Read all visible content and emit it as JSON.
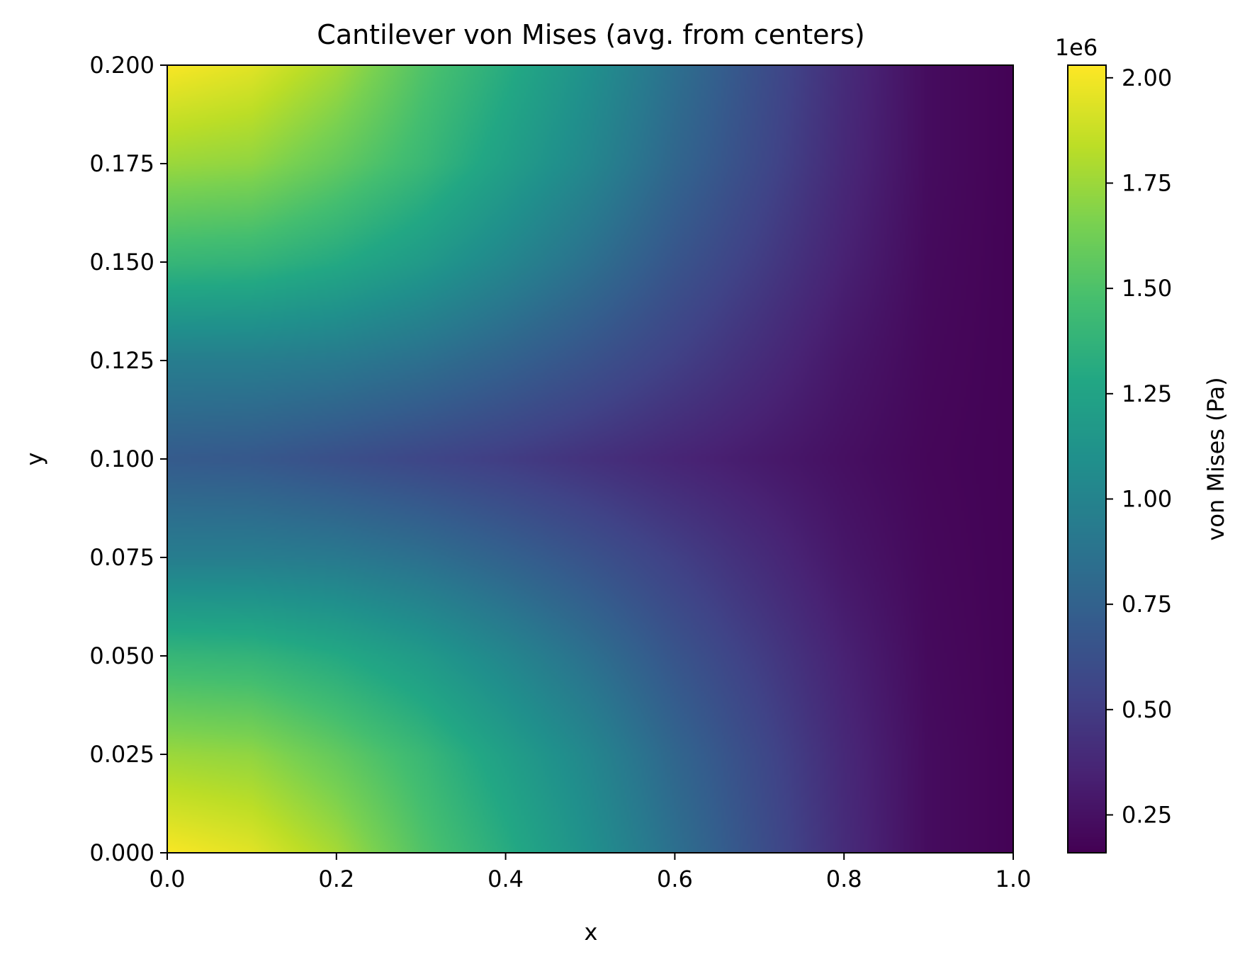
{
  "chart_data": {
    "type": "heatmap",
    "title": "Cantilever von Mises (avg. from centers)",
    "xlabel": "x",
    "ylabel": "y",
    "xlim": [
      0.0,
      1.0
    ],
    "ylim": [
      0.0,
      0.2
    ],
    "x_ticks": [
      "0.0",
      "0.2",
      "0.4",
      "0.6",
      "0.8",
      "1.0"
    ],
    "y_ticks": [
      "0.000",
      "0.025",
      "0.050",
      "0.075",
      "0.100",
      "0.125",
      "0.150",
      "0.175",
      "0.200"
    ],
    "colorbar": {
      "label": "von Mises (Pa)",
      "offset_text": "1e6",
      "range": [
        160000,
        2030000
      ],
      "ticks": [
        "0.25",
        "0.50",
        "0.75",
        "1.00",
        "1.25",
        "1.50",
        "1.75",
        "2.00"
      ],
      "tick_values": [
        0.25,
        0.5,
        0.75,
        1.0,
        1.25,
        1.5,
        1.75,
        2.0
      ],
      "colormap": "viridis"
    },
    "grid": false,
    "field": {
      "description_units": "von Mises stress in units of 1e6 Pa",
      "x": [
        0.0,
        0.1,
        0.2,
        0.3,
        0.4,
        0.5,
        0.6,
        0.7,
        0.8,
        0.9,
        1.0
      ],
      "y": [
        0.0,
        0.025,
        0.05,
        0.075,
        0.1,
        0.125,
        0.15,
        0.175,
        0.2
      ],
      "values": [
        [
          2.02,
          1.95,
          1.78,
          1.52,
          1.32,
          1.1,
          0.85,
          0.62,
          0.4,
          0.22,
          0.17
        ],
        [
          1.75,
          1.72,
          1.58,
          1.42,
          1.22,
          1.02,
          0.78,
          0.58,
          0.38,
          0.22,
          0.17
        ],
        [
          1.4,
          1.38,
          1.3,
          1.18,
          1.02,
          0.85,
          0.66,
          0.5,
          0.34,
          0.21,
          0.17
        ],
        [
          0.95,
          0.95,
          0.92,
          0.85,
          0.75,
          0.64,
          0.52,
          0.4,
          0.28,
          0.2,
          0.17
        ],
        [
          0.7,
          0.68,
          0.62,
          0.56,
          0.5,
          0.43,
          0.36,
          0.3,
          0.24,
          0.19,
          0.17
        ],
        [
          0.95,
          0.95,
          0.92,
          0.85,
          0.75,
          0.64,
          0.52,
          0.4,
          0.28,
          0.2,
          0.17
        ],
        [
          1.4,
          1.38,
          1.3,
          1.18,
          1.02,
          0.85,
          0.66,
          0.5,
          0.34,
          0.21,
          0.17
        ],
        [
          1.75,
          1.72,
          1.58,
          1.42,
          1.22,
          1.02,
          0.78,
          0.58,
          0.38,
          0.22,
          0.17
        ],
        [
          2.02,
          1.95,
          1.78,
          1.52,
          1.32,
          1.1,
          0.85,
          0.62,
          0.4,
          0.22,
          0.17
        ]
      ]
    }
  }
}
